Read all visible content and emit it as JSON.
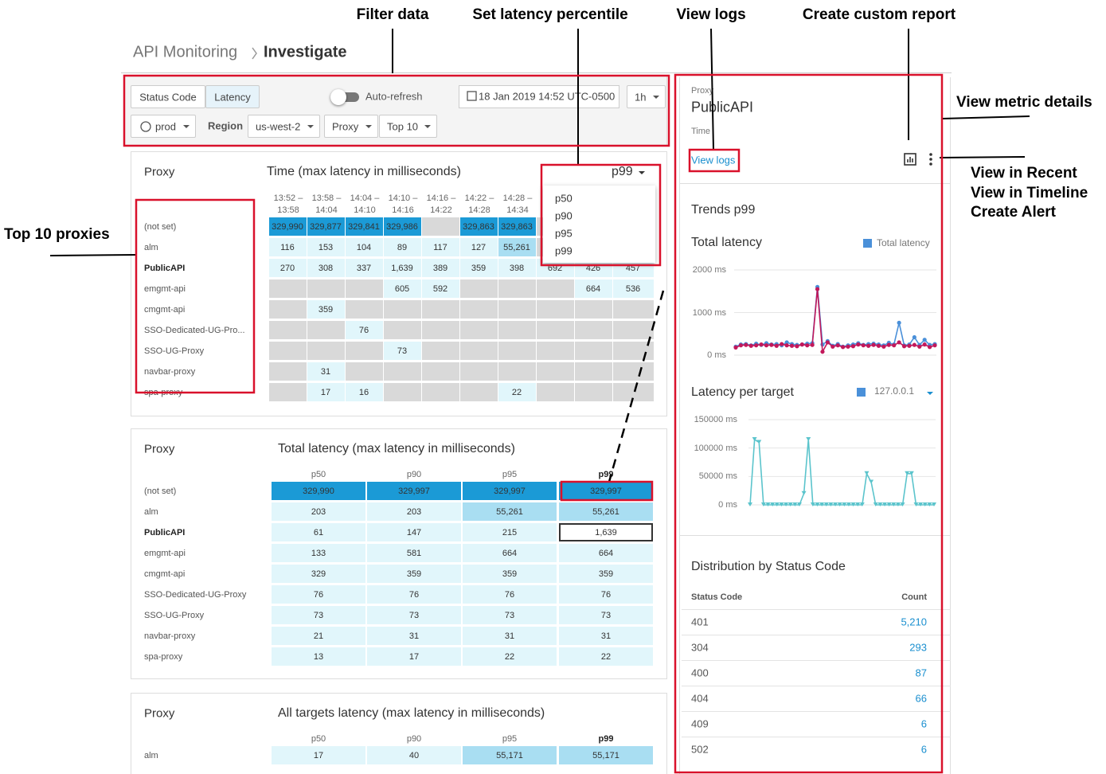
{
  "annotations": {
    "filter_data": "Filter data",
    "set_latency_percentile": "Set latency percentile",
    "view_logs": "View logs",
    "create_custom_report": "Create custom report",
    "view_metric_details": "View metric details",
    "more_actions": [
      "View in Recent",
      "View in Timeline",
      "Create Alert"
    ],
    "top_proxies": "Top 10 proxies"
  },
  "breadcrumb": {
    "parent": "API Monitoring",
    "current": "Investigate"
  },
  "filters": {
    "tabs": [
      "Status Code",
      "Latency"
    ],
    "auto_refresh": "Auto-refresh",
    "date": "18 Jan 2019 14:52 UTC-0500",
    "range": "1h",
    "environment": "prod",
    "region_label": "Region",
    "region": "us-west-2",
    "dimension": "Proxy",
    "limit": "Top 10"
  },
  "time_panel": {
    "row_header": "Proxy",
    "title": "Time (max latency in milliseconds)",
    "percentile": "p99",
    "percentile_options": [
      "p50",
      "p90",
      "p95",
      "p99"
    ],
    "columns": [
      [
        "13:52 –",
        "13:58"
      ],
      [
        "13:58 –",
        "14:04"
      ],
      [
        "14:04 –",
        "14:10"
      ],
      [
        "14:10 –",
        "14:16"
      ],
      [
        "14:16 –",
        "14:22"
      ],
      [
        "14:22 –",
        "14:28"
      ],
      [
        "14:28 –",
        "14:34"
      ],
      null,
      null,
      null
    ],
    "rows": [
      {
        "name": "(not set)",
        "cells": [
          "329,990",
          "329,877",
          "329,841",
          "329,986",
          null,
          "329,863",
          "329,863",
          null,
          null,
          null
        ]
      },
      {
        "name": "alm",
        "cells": [
          "116",
          "153",
          "104",
          "89",
          "117",
          "127",
          "55,261",
          null,
          null,
          null
        ]
      },
      {
        "name": "PublicAPI",
        "cells": [
          "270",
          "308",
          "337",
          "1,639",
          "389",
          "359",
          "398",
          "692",
          "426",
          "457"
        ]
      },
      {
        "name": "emgmt-api",
        "cells": [
          null,
          null,
          null,
          "605",
          "592",
          null,
          null,
          null,
          "664",
          "536"
        ]
      },
      {
        "name": "cmgmt-api",
        "cells": [
          null,
          "359",
          null,
          null,
          null,
          null,
          null,
          null,
          null,
          null
        ]
      },
      {
        "name": "SSO-Dedicated-UG-Pro...",
        "cells": [
          null,
          null,
          "76",
          null,
          null,
          null,
          null,
          null,
          null,
          null
        ]
      },
      {
        "name": "SSO-UG-Proxy",
        "cells": [
          null,
          null,
          null,
          "73",
          null,
          null,
          null,
          null,
          null,
          null
        ]
      },
      {
        "name": "navbar-proxy",
        "cells": [
          null,
          "31",
          null,
          null,
          null,
          null,
          null,
          null,
          null,
          null
        ]
      },
      {
        "name": "spa-proxy",
        "cells": [
          null,
          "17",
          "16",
          null,
          null,
          null,
          "22",
          null,
          null,
          null
        ]
      }
    ]
  },
  "total_latency": {
    "row_header": "Proxy",
    "title": "Total latency (max latency in milliseconds)",
    "columns": [
      "p50",
      "p90",
      "p95",
      "p99"
    ],
    "rows": [
      {
        "name": "(not set)",
        "cells": [
          "329,990",
          "329,997",
          "329,997",
          "329,997"
        ]
      },
      {
        "name": "alm",
        "cells": [
          "203",
          "203",
          "55,261",
          "55,261"
        ]
      },
      {
        "name": "PublicAPI",
        "cells": [
          "61",
          "147",
          "215",
          "1,639"
        ]
      },
      {
        "name": "emgmt-api",
        "cells": [
          "133",
          "581",
          "664",
          "664"
        ]
      },
      {
        "name": "cmgmt-api",
        "cells": [
          "329",
          "359",
          "359",
          "359"
        ]
      },
      {
        "name": "SSO-Dedicated-UG-Proxy",
        "cells": [
          "76",
          "76",
          "76",
          "76"
        ]
      },
      {
        "name": "SSO-UG-Proxy",
        "cells": [
          "73",
          "73",
          "73",
          "73"
        ]
      },
      {
        "name": "navbar-proxy",
        "cells": [
          "21",
          "31",
          "31",
          "31"
        ]
      },
      {
        "name": "spa-proxy",
        "cells": [
          "13",
          "17",
          "22",
          "22"
        ]
      }
    ]
  },
  "targets_latency": {
    "row_header": "Proxy",
    "title": "All targets latency (max latency in milliseconds)",
    "columns": [
      "p50",
      "p90",
      "p95",
      "p99"
    ],
    "rows": [
      {
        "name": "alm",
        "cells": [
          "17",
          "40",
          "55,171",
          "55,171"
        ]
      }
    ]
  },
  "side_panel": {
    "proxy_label": "Proxy",
    "proxy": "PublicAPI",
    "time_label": "Time",
    "view_logs": "View logs",
    "trends_title": "Trends p99",
    "charts": [
      {
        "type": "line",
        "title": "Total latency",
        "ylim": [
          0,
          2000
        ],
        "yticks": [
          {
            "value": 0,
            "label": "0 ms"
          },
          {
            "value": 1000,
            "label": "1000 ms"
          },
          {
            "value": 2000,
            "label": "2000 ms"
          }
        ],
        "grid": true,
        "series": [
          {
            "name": "Total latency",
            "color": "#4a90d9",
            "values": [
              200,
              250,
              260,
              230,
              270,
              240,
              280,
              250,
              260,
              230,
              300,
              260,
              240,
              250,
              270,
              280,
              1600,
              250,
              330,
              220,
              260,
              200,
              230,
              250,
              280,
              240,
              260,
              270,
              250,
              230,
              290,
              250,
              760,
              230,
              250,
              420,
              240,
              360,
              240,
              260
            ]
          },
          {
            "color": "#c2185b",
            "values": [
              180,
              230,
              240,
              220,
              230,
              250,
              230,
              240,
              220,
              260,
              230,
              220,
              210,
              250,
              230,
              240,
              1550,
              80,
              300,
              200,
              230,
              190,
              200,
              210,
              250,
              230,
              220,
              240,
              220,
              200,
              240,
              230,
              300,
              210,
              220,
              240,
              200,
              250,
              190,
              230
            ]
          }
        ]
      },
      {
        "type": "line",
        "title": "Latency per target",
        "ylim": [
          0,
          150000
        ],
        "yticks": [
          {
            "value": 0,
            "label": "0 ms"
          },
          {
            "value": 50000,
            "label": "50000 ms"
          },
          {
            "value": 100000,
            "label": "100000 ms"
          },
          {
            "value": 150000,
            "label": "150000 ms"
          }
        ],
        "grid": true,
        "legend_color": "#4a90d9",
        "series": [
          {
            "name": "127.0.0.1",
            "color": "#5bc4cc",
            "values": [
              0,
              115000,
              110000,
              0,
              0,
              0,
              0,
              0,
              0,
              0,
              0,
              0,
              20000,
              115000,
              0,
              0,
              0,
              0,
              0,
              0,
              0,
              0,
              0,
              0,
              0,
              0,
              55000,
              40000,
              0,
              0,
              0,
              0,
              0,
              0,
              0,
              55000,
              55000,
              0,
              0,
              0,
              0,
              0
            ]
          }
        ]
      }
    ],
    "distribution": {
      "title": "Distribution by Status Code",
      "headers": [
        "Status Code",
        "Count"
      ],
      "rows": [
        [
          "401",
          "5,210"
        ],
        [
          "304",
          "293"
        ],
        [
          "400",
          "87"
        ],
        [
          "404",
          "66"
        ],
        [
          "409",
          "6"
        ],
        [
          "502",
          "6"
        ]
      ]
    }
  }
}
